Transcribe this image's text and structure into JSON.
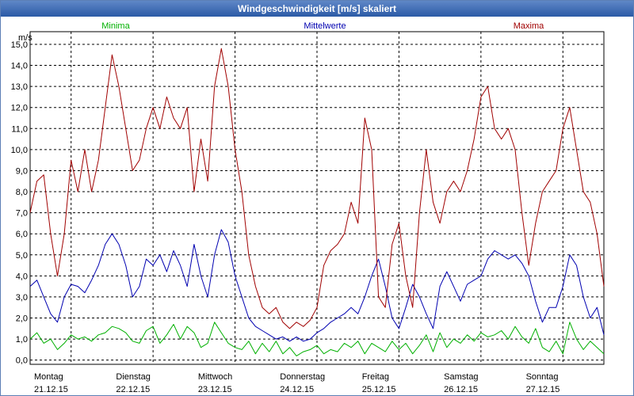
{
  "window": {
    "title": "Windgeschwindigkeit [m/s] skaliert"
  },
  "chart_data": {
    "type": "line",
    "title": "Windgeschwindigkeit [m/s] skaliert",
    "ylabel": "m/s",
    "xlabel": "",
    "ylim": [
      -0.2,
      15.6
    ],
    "yticks": [
      0,
      1,
      2,
      3,
      4,
      5,
      6,
      7,
      8,
      9,
      10,
      11,
      12,
      13,
      14,
      15
    ],
    "ytick_labels": [
      "0,0",
      "1,0",
      "2,0",
      "3,0",
      "4,0",
      "5,0",
      "6,0",
      "7,0",
      "8,0",
      "9,0",
      "10,0",
      "11,0",
      "12,0",
      "13,0",
      "14,0",
      "15,0"
    ],
    "x_unit": "hours since 21.12.15 00:00",
    "xlim": [
      0,
      168
    ],
    "days": [
      {
        "name": "Montag",
        "date": "21.12.15"
      },
      {
        "name": "Dienstag",
        "date": "22.12.15"
      },
      {
        "name": "Mittwoch",
        "date": "23.12.15"
      },
      {
        "name": "Donnerstag",
        "date": "24.12.15"
      },
      {
        "name": "Freitag",
        "date": "25.12.15"
      },
      {
        "name": "Samstag",
        "date": "26.12.15"
      },
      {
        "name": "Sonntag",
        "date": "27.12.15"
      }
    ],
    "grid": true,
    "series": [
      {
        "name": "Minima",
        "color": "#00b000",
        "x": [
          0,
          2,
          4,
          6,
          8,
          10,
          12,
          14,
          16,
          18,
          20,
          22,
          24,
          26,
          28,
          30,
          32,
          34,
          36,
          38,
          40,
          42,
          44,
          46,
          48,
          50,
          52,
          54,
          56,
          58,
          60,
          62,
          64,
          66,
          68,
          70,
          72,
          74,
          76,
          78,
          80,
          82,
          84,
          86,
          88,
          90,
          92,
          94,
          96,
          98,
          100,
          102,
          104,
          106,
          108,
          110,
          112,
          114,
          116,
          118,
          120,
          122,
          124,
          126,
          128,
          130,
          132,
          134,
          136,
          138,
          140,
          142,
          144,
          146,
          148,
          150,
          152,
          154,
          156,
          158,
          160,
          162,
          164,
          166,
          168
        ],
        "values": [
          1.0,
          1.3,
          0.8,
          1.0,
          0.5,
          0.8,
          1.2,
          1.0,
          1.1,
          0.9,
          1.2,
          1.3,
          1.6,
          1.5,
          1.3,
          0.9,
          0.8,
          1.4,
          1.6,
          0.8,
          1.2,
          1.7,
          1.0,
          1.6,
          1.3,
          0.6,
          0.8,
          1.8,
          1.3,
          0.8,
          0.6,
          0.5,
          0.9,
          0.3,
          0.8,
          0.4,
          0.9,
          0.3,
          0.6,
          0.2,
          0.4,
          0.5,
          0.7,
          0.3,
          0.5,
          0.4,
          0.8,
          0.6,
          0.9,
          0.3,
          0.8,
          0.6,
          0.4,
          0.9,
          0.5,
          0.8,
          0.3,
          0.7,
          1.2,
          0.4,
          1.3,
          0.6,
          1.0,
          0.8,
          1.2,
          0.9,
          1.3,
          1.1,
          1.2,
          1.4,
          1.0,
          1.6,
          1.1,
          0.8,
          1.5,
          0.6,
          0.4,
          0.9,
          0.3,
          1.8,
          1.0,
          0.5,
          0.9,
          0.6,
          0.3
        ]
      },
      {
        "name": "Mittelwerte",
        "color": "#0000b0",
        "x": [
          0,
          2,
          4,
          6,
          8,
          10,
          12,
          14,
          16,
          18,
          20,
          22,
          24,
          26,
          28,
          30,
          32,
          34,
          36,
          38,
          40,
          42,
          44,
          46,
          48,
          50,
          52,
          54,
          56,
          58,
          60,
          62,
          64,
          66,
          68,
          70,
          72,
          74,
          76,
          78,
          80,
          82,
          84,
          86,
          88,
          90,
          92,
          94,
          96,
          98,
          100,
          102,
          104,
          106,
          108,
          110,
          112,
          114,
          116,
          118,
          120,
          122,
          124,
          126,
          128,
          130,
          132,
          134,
          136,
          138,
          140,
          142,
          144,
          146,
          148,
          150,
          152,
          154,
          156,
          158,
          160,
          162,
          164,
          166,
          168
        ],
        "values": [
          3.5,
          3.8,
          3.0,
          2.2,
          1.8,
          3.0,
          3.6,
          3.5,
          3.2,
          3.8,
          4.5,
          5.5,
          6.0,
          5.5,
          4.5,
          3.0,
          3.5,
          4.8,
          4.5,
          5.0,
          4.2,
          5.2,
          4.5,
          3.5,
          5.5,
          4.0,
          3.0,
          5.0,
          6.2,
          5.6,
          4.0,
          3.0,
          2.0,
          1.6,
          1.4,
          1.2,
          1.0,
          1.1,
          0.9,
          1.1,
          0.9,
          1.0,
          1.3,
          1.5,
          1.8,
          2.0,
          2.2,
          2.5,
          2.2,
          3.0,
          4.0,
          4.8,
          3.5,
          2.0,
          1.5,
          2.5,
          3.6,
          3.0,
          2.2,
          1.5,
          3.5,
          4.2,
          3.5,
          2.8,
          3.6,
          3.8,
          4.0,
          4.8,
          5.2,
          5.0,
          4.8,
          5.0,
          4.6,
          4.0,
          2.8,
          1.8,
          2.5,
          2.5,
          3.5,
          5.0,
          4.5,
          3.0,
          2.0,
          2.5,
          1.2
        ]
      },
      {
        "name": "Maxima",
        "color": "#a00000",
        "x": [
          0,
          2,
          4,
          6,
          8,
          10,
          12,
          14,
          16,
          18,
          20,
          22,
          24,
          26,
          28,
          30,
          32,
          34,
          36,
          38,
          40,
          42,
          44,
          46,
          48,
          50,
          52,
          54,
          56,
          58,
          60,
          62,
          64,
          66,
          68,
          70,
          72,
          74,
          76,
          78,
          80,
          82,
          84,
          86,
          88,
          90,
          92,
          94,
          96,
          98,
          100,
          102,
          104,
          106,
          108,
          110,
          112,
          114,
          116,
          118,
          120,
          122,
          124,
          126,
          128,
          130,
          132,
          134,
          136,
          138,
          140,
          142,
          144,
          146,
          148,
          150,
          152,
          154,
          156,
          158,
          160,
          162,
          164,
          166,
          168
        ],
        "values": [
          7.0,
          8.5,
          8.8,
          6.0,
          4.0,
          6.0,
          9.5,
          8.0,
          10.0,
          8.0,
          9.5,
          12.0,
          14.5,
          13.0,
          11.0,
          9.0,
          9.5,
          11.0,
          12.0,
          11.0,
          12.5,
          11.5,
          11.0,
          12.0,
          8.0,
          10.5,
          8.5,
          13.0,
          14.8,
          13.0,
          10.0,
          8.0,
          5.0,
          3.5,
          2.5,
          2.2,
          2.5,
          1.8,
          1.5,
          1.8,
          1.6,
          1.9,
          2.5,
          4.5,
          5.2,
          5.5,
          6.0,
          7.5,
          6.5,
          11.5,
          10.0,
          3.0,
          2.5,
          5.5,
          6.5,
          4.0,
          2.5,
          7.0,
          10.0,
          7.5,
          6.5,
          8.0,
          8.5,
          8.0,
          9.0,
          10.5,
          12.5,
          13.0,
          11.0,
          10.5,
          11.0,
          10.0,
          7.0,
          4.5,
          6.5,
          8.0,
          8.5,
          9.0,
          11.0,
          12.0,
          10.0,
          8.0,
          7.5,
          6.0,
          3.5
        ]
      }
    ]
  }
}
